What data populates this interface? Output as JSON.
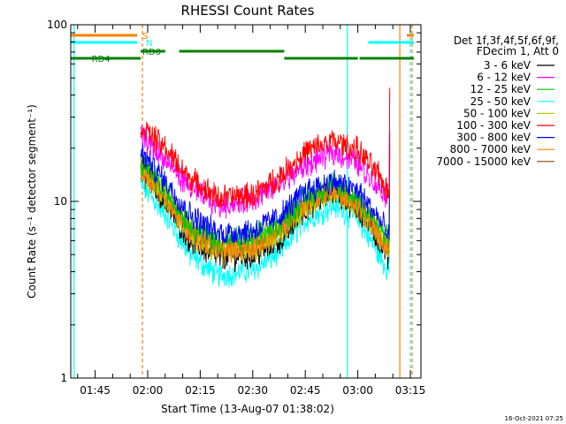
{
  "chart_data": {
    "type": "line",
    "title": "RHESSI Count Rates",
    "xlabel": "Start Time (13-Aug-07 01:38:02)",
    "ylabel": "Count Rate (s⁻¹ detector segment⁻¹)",
    "y_scale": "log",
    "ylim": [
      1,
      100
    ],
    "y_ticks": [
      "1",
      "10",
      "100"
    ],
    "xlim": [
      "01:38:02",
      "03:18:02"
    ],
    "x_ticks": [
      "01:45",
      "02:00",
      "02:15",
      "02:30",
      "02:45",
      "03:00",
      "03:15"
    ],
    "footer_date": "16-Oct-2021 07:25",
    "legend_header": [
      "Det 1f,3f,4f,5f,6f,9f,",
      "FDecim 1, Att 0"
    ],
    "series": [
      {
        "name": "3 - 6 keV",
        "color": "#000000",
        "points": [
          [
            "01:58:00",
            16
          ],
          [
            "02:05:00",
            10
          ],
          [
            "02:12:00",
            6
          ],
          [
            "02:20:00",
            4.8
          ],
          [
            "02:30:00",
            4.9
          ],
          [
            "02:38:00",
            6
          ],
          [
            "02:45:00",
            9
          ],
          [
            "02:53:00",
            11.5
          ],
          [
            "03:00:00",
            9
          ],
          [
            "03:06:00",
            6
          ],
          [
            "03:09:00",
            4.8
          ]
        ]
      },
      {
        "name": "6 - 12 keV",
        "color": "#ff00ff",
        "points": [
          [
            "01:58:00",
            24
          ],
          [
            "02:05:00",
            17
          ],
          [
            "02:12:00",
            12
          ],
          [
            "02:20:00",
            9.5
          ],
          [
            "02:30:00",
            10.2
          ],
          [
            "02:38:00",
            12.5
          ],
          [
            "02:45:00",
            16
          ],
          [
            "02:53:00",
            19
          ],
          [
            "03:00:00",
            16.5
          ],
          [
            "03:06:00",
            12
          ],
          [
            "03:09:00",
            10.5
          ]
        ]
      },
      {
        "name": "12 - 25 keV",
        "color": "#00c800",
        "points": [
          [
            "01:58:00",
            17
          ],
          [
            "02:05:00",
            11.5
          ],
          [
            "02:12:00",
            7.5
          ],
          [
            "02:20:00",
            6
          ],
          [
            "02:30:00",
            6.2
          ],
          [
            "02:38:00",
            7.5
          ],
          [
            "02:45:00",
            10.5
          ],
          [
            "02:53:00",
            12.5
          ],
          [
            "03:00:00",
            10.5
          ],
          [
            "03:06:00",
            7.2
          ],
          [
            "03:09:00",
            6
          ]
        ]
      },
      {
        "name": "25 - 50 keV",
        "color": "#00ffff",
        "points": [
          [
            "01:58:00",
            12.5
          ],
          [
            "02:05:00",
            8.5
          ],
          [
            "02:12:00",
            5
          ],
          [
            "02:20:00",
            3.8
          ],
          [
            "02:30:00",
            4.1
          ],
          [
            "02:38:00",
            5.2
          ],
          [
            "02:45:00",
            7.8
          ],
          [
            "02:53:00",
            9.5
          ],
          [
            "03:00:00",
            8
          ],
          [
            "03:06:00",
            5
          ],
          [
            "03:09:00",
            4
          ]
        ]
      },
      {
        "name": "50 - 100 keV",
        "color": "#c8c800",
        "points": [
          [
            "01:58:00",
            15
          ],
          [
            "02:05:00",
            10.5
          ],
          [
            "02:12:00",
            6.5
          ],
          [
            "02:20:00",
            5.2
          ],
          [
            "02:30:00",
            5.3
          ],
          [
            "02:38:00",
            6.6
          ],
          [
            "02:45:00",
            9.5
          ],
          [
            "02:53:00",
            11.5
          ],
          [
            "03:00:00",
            9.5
          ],
          [
            "03:06:00",
            6.4
          ],
          [
            "03:09:00",
            5.2
          ]
        ]
      },
      {
        "name": "100 - 300 keV",
        "color": "#ff0000",
        "points": [
          [
            "01:58:00",
            27
          ],
          [
            "02:05:00",
            20
          ],
          [
            "02:12:00",
            13.5
          ],
          [
            "02:20:00",
            10.5
          ],
          [
            "02:30:00",
            10.8
          ],
          [
            "02:38:00",
            14
          ],
          [
            "02:45:00",
            19
          ],
          [
            "02:53:00",
            22
          ],
          [
            "03:00:00",
            19.5
          ],
          [
            "03:06:00",
            14
          ],
          [
            "03:09:00",
            11
          ]
        ]
      },
      {
        "name": "300 - 800 keV",
        "color": "#0000ff",
        "points": [
          [
            "01:58:00",
            19
          ],
          [
            "02:05:00",
            13
          ],
          [
            "02:12:00",
            8.5
          ],
          [
            "02:20:00",
            6.6
          ],
          [
            "02:30:00",
            6.8
          ],
          [
            "02:38:00",
            8.3
          ],
          [
            "02:45:00",
            11.5
          ],
          [
            "02:53:00",
            13
          ],
          [
            "03:00:00",
            11.5
          ],
          [
            "03:06:00",
            8
          ],
          [
            "03:09:00",
            6.3
          ]
        ]
      },
      {
        "name": "800 - 7000 keV",
        "color": "#ff8000",
        "points": [
          [
            "01:58:00",
            15.5
          ],
          [
            "02:05:00",
            10.8
          ],
          [
            "02:12:00",
            6.8
          ],
          [
            "02:20:00",
            5.4
          ],
          [
            "02:30:00",
            5.5
          ],
          [
            "02:38:00",
            6.9
          ],
          [
            "02:45:00",
            9.8
          ],
          [
            "02:53:00",
            11.8
          ],
          [
            "03:00:00",
            9.8
          ],
          [
            "03:06:00",
            6.6
          ],
          [
            "03:09:00",
            5.4
          ]
        ]
      },
      {
        "name": "7000 - 15000 keV",
        "color": "#8b4513",
        "points": [
          [
            "01:58:00",
            15.2
          ],
          [
            "02:05:00",
            10.6
          ],
          [
            "02:12:00",
            6.6
          ],
          [
            "02:20:00",
            5.3
          ],
          [
            "02:30:00",
            5.4
          ],
          [
            "02:38:00",
            6.8
          ],
          [
            "02:45:00",
            9.6
          ],
          [
            "02:53:00",
            11.6
          ],
          [
            "03:00:00",
            9.6
          ],
          [
            "03:06:00",
            6.5
          ],
          [
            "03:09:00",
            5.3
          ]
        ]
      }
    ],
    "annotations": [
      {
        "label": "S",
        "color": "#ff8000",
        "segments": [
          [
            "01:38:02",
            "01:57:00"
          ],
          [
            "03:14:00",
            "03:16:00"
          ]
        ]
      },
      {
        "label": "N",
        "color": "#00ffff",
        "segments": [
          [
            "01:38:02",
            "01:57:00"
          ],
          [
            "03:03:00",
            "03:16:00"
          ]
        ]
      },
      {
        "label": "RD0",
        "color": "#008000",
        "segments": [
          [
            "01:58:00",
            "02:05:00"
          ],
          [
            "02:09:00",
            "02:39:00"
          ]
        ]
      },
      {
        "label": "RD4",
        "color": "#008000",
        "segments": [
          [
            "01:38:02",
            "01:58:00"
          ],
          [
            "02:39:00",
            "03:00:00"
          ],
          [
            "03:00:30",
            "03:16:00"
          ]
        ]
      }
    ],
    "markers": [
      {
        "time": "01:39:00",
        "color": "#00ffff",
        "style": "solid"
      },
      {
        "time": "01:58:30",
        "color": "#ff8000",
        "style": "dashed"
      },
      {
        "time": "02:57:00",
        "color": "#00ffff",
        "style": "solid"
      },
      {
        "time": "03:12:00",
        "color": "#ff8000",
        "style": "solid"
      },
      {
        "time": "03:15:00",
        "color": "#00ffff",
        "style": "dashed"
      },
      {
        "time": "03:15:30",
        "color": "#ff8000",
        "style": "dashed"
      }
    ]
  }
}
